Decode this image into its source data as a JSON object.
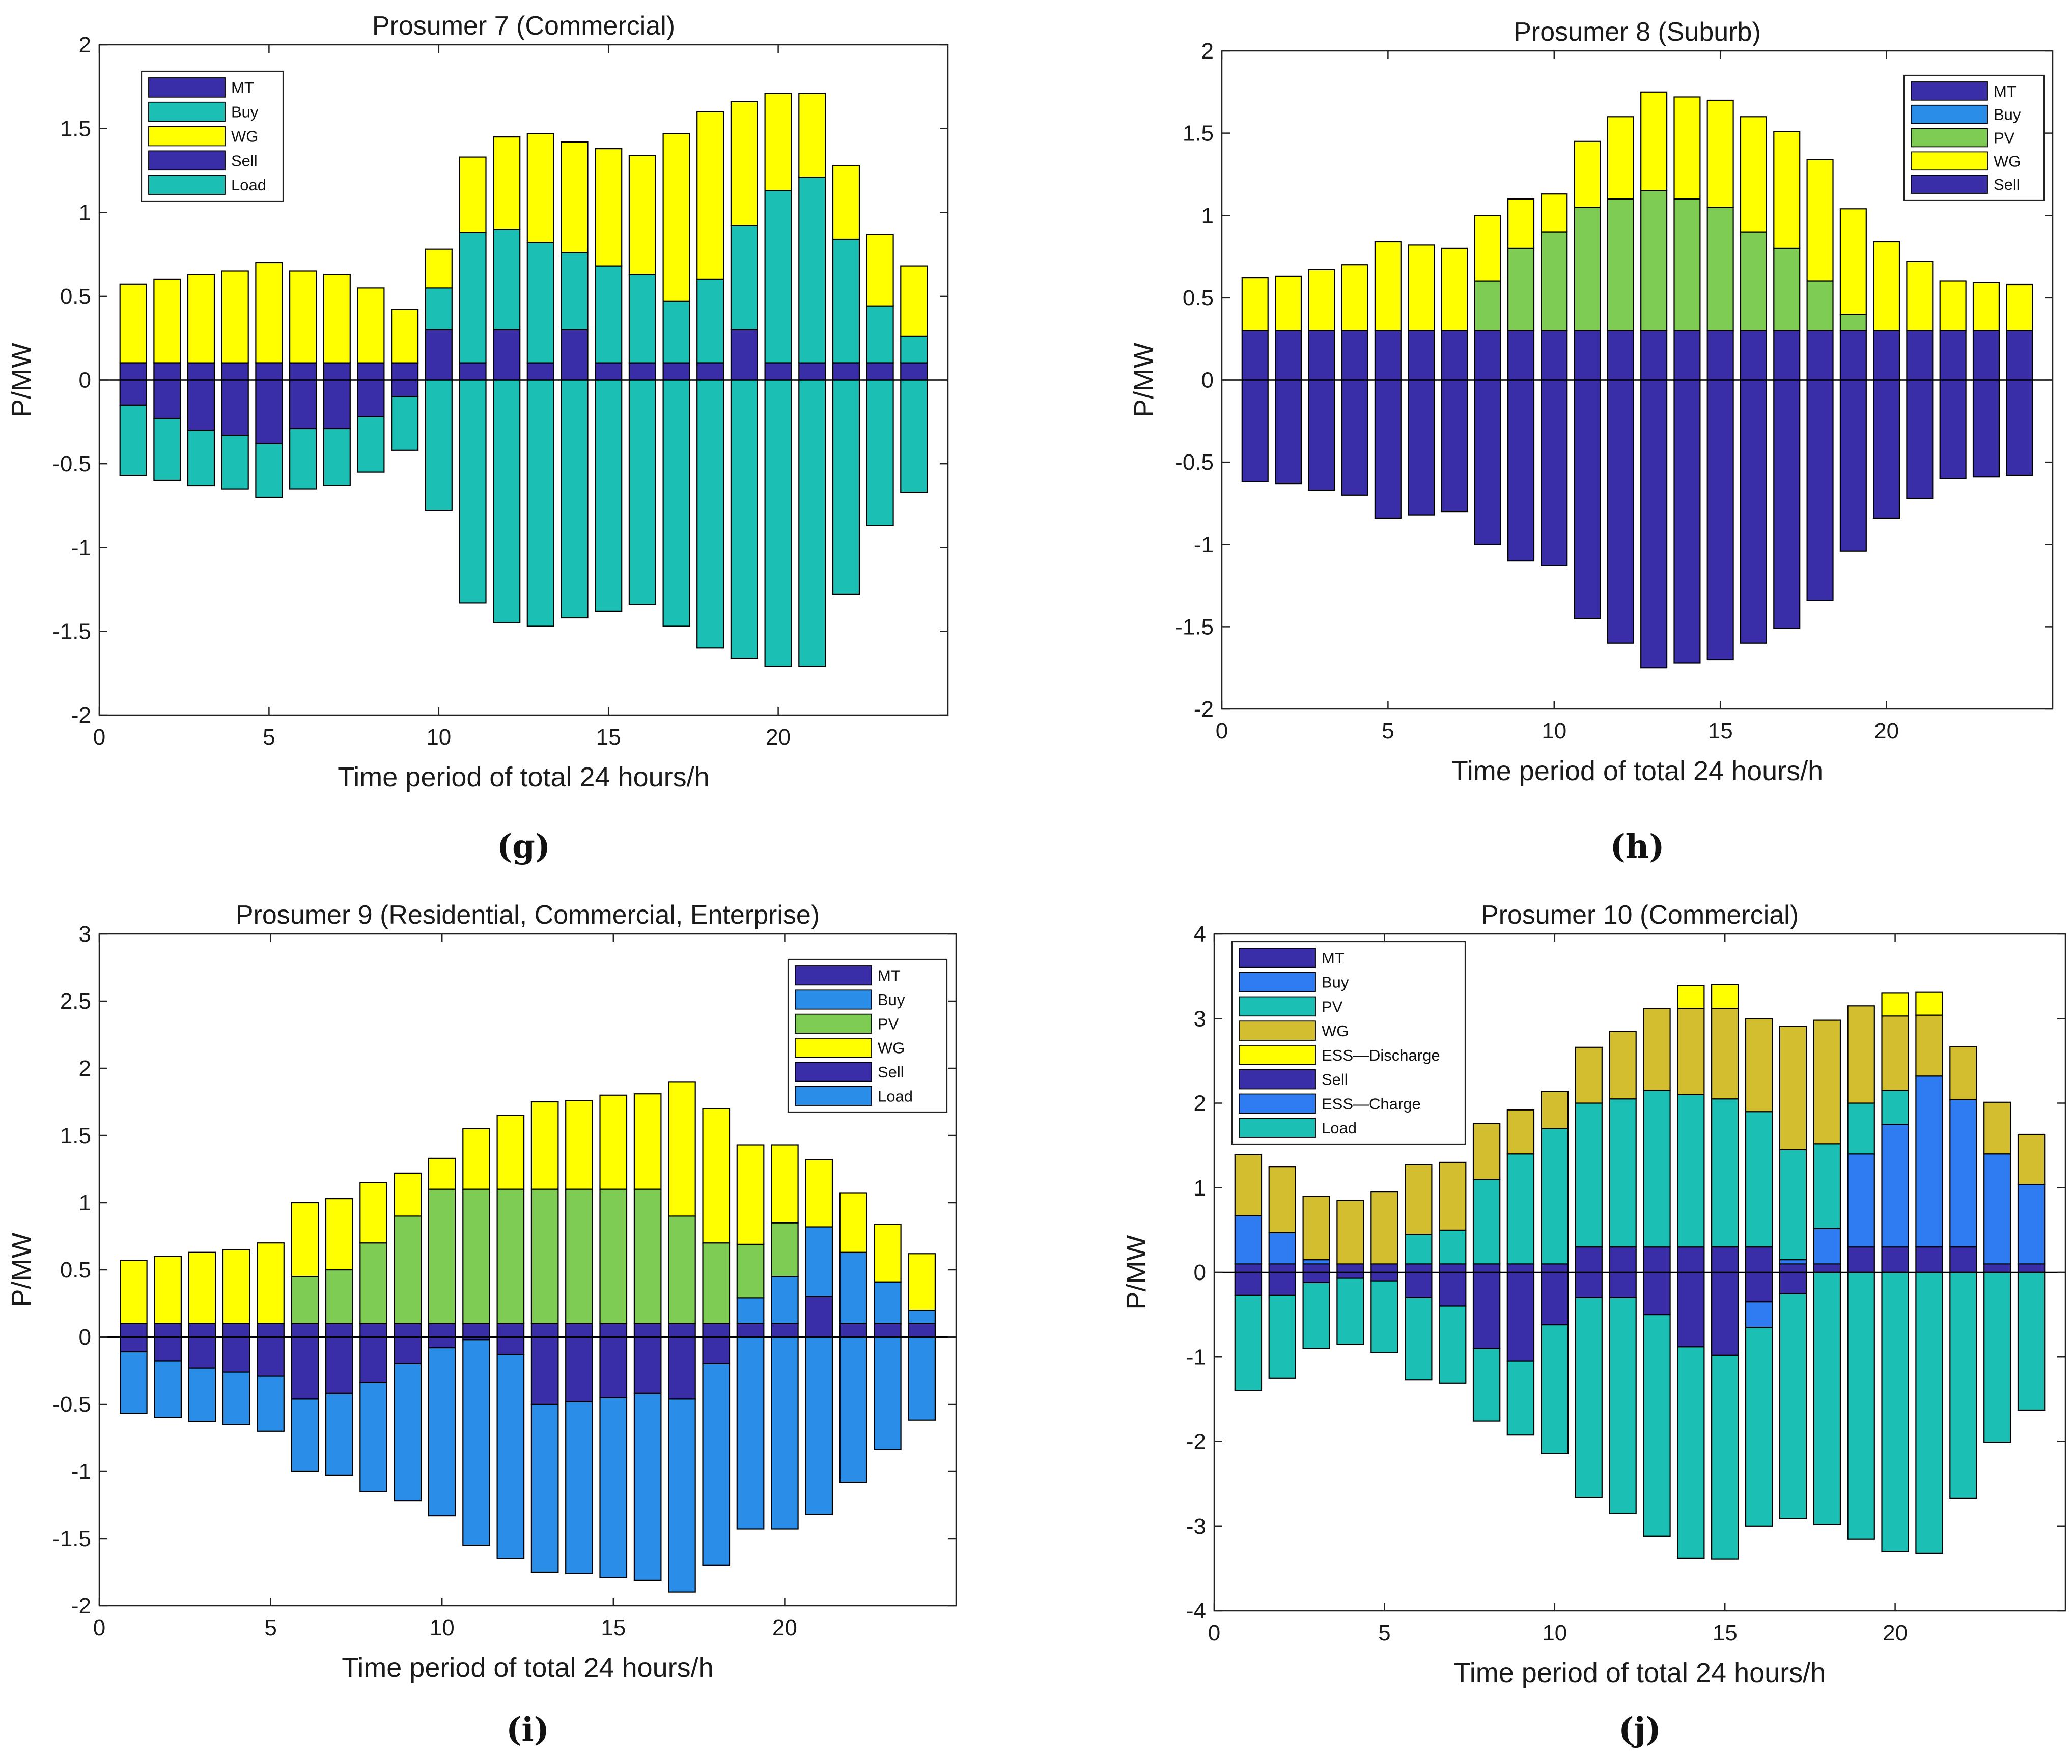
{
  "colors": {
    "MT": "#3a2ea8",
    "Buy_teal": "#1bbfb4",
    "Buy_blue": "#2a8ee8",
    "Buy_royal": "#2e7bf2",
    "PV_green": "#7fcc55",
    "PV_teal": "#1bbfb4",
    "WG_yellow": "#ffff00",
    "WG_olive": "#d2be2e",
    "ESS_discharge": "#ffff00",
    "Sell": "#3a2ea8",
    "ESS_charge": "#2e7bf2",
    "Load_teal": "#1bbfb4",
    "Load_blue": "#2a8ee8",
    "Load_bluegreen": "#1bbfb4"
  },
  "chart_data": [
    {
      "type": "bar",
      "stacked": true,
      "panel": "g",
      "title": "Prosumer 7 (Commercial)",
      "caption": "(g)",
      "xlabel": "Time period of total 24 hours/h",
      "ylabel": "P/MW",
      "xlim": [
        0,
        25
      ],
      "ylim": [
        -2,
        2
      ],
      "xticks": [
        0,
        5,
        10,
        15,
        20
      ],
      "yticks": [
        -2,
        -1.5,
        -1,
        -0.5,
        0,
        0.5,
        1,
        1.5,
        2
      ],
      "ytick_labels": [
        "-2",
        "-1.5",
        "-1",
        "-0.5",
        "0",
        "0.5",
        "1",
        "1.5",
        "2"
      ],
      "legend_position": "top-left",
      "categories": [
        1,
        2,
        3,
        4,
        5,
        6,
        7,
        8,
        9,
        10,
        11,
        12,
        13,
        14,
        15,
        16,
        17,
        18,
        19,
        20,
        21,
        22,
        23,
        24
      ],
      "series": [
        {
          "name": "MT",
          "color": "#3a2ea8",
          "values": [
            0.1,
            0.1,
            0.1,
            0.1,
            0.1,
            0.1,
            0.1,
            0.1,
            0.1,
            0.3,
            0.1,
            0.3,
            0.1,
            0.3,
            0.1,
            0.1,
            0.1,
            0.1,
            0.3,
            0.1,
            0.1,
            0.1,
            0.1,
            0.1
          ]
        },
        {
          "name": "Buy",
          "color": "#1bbfb4",
          "values": [
            0,
            0,
            0,
            0,
            0,
            0,
            0,
            0,
            0,
            0.25,
            0.78,
            0.6,
            0.72,
            0.46,
            0.58,
            0.53,
            0.37,
            0.5,
            0.62,
            1.03,
            1.11,
            0.74,
            0.34,
            0.16
          ]
        },
        {
          "name": "WG",
          "color": "#ffff00",
          "values": [
            0.47,
            0.5,
            0.53,
            0.55,
            0.6,
            0.55,
            0.53,
            0.45,
            0.32,
            0.23,
            0.45,
            0.55,
            0.65,
            0.66,
            0.7,
            0.71,
            1.0,
            1.0,
            0.74,
            0.58,
            0.5,
            0.44,
            0.43,
            0.42
          ]
        },
        {
          "name": "Sell",
          "color": "#3a2ea8",
          "values": [
            -0.15,
            -0.23,
            -0.3,
            -0.33,
            -0.38,
            -0.29,
            -0.29,
            -0.22,
            -0.1,
            0,
            0,
            0,
            0,
            0,
            0,
            0,
            0,
            0,
            0,
            0,
            0,
            0,
            0,
            0
          ]
        },
        {
          "name": "Load",
          "color": "#1bbfb4",
          "values": [
            -0.42,
            -0.37,
            -0.33,
            -0.32,
            -0.32,
            -0.36,
            -0.34,
            -0.33,
            -0.32,
            -0.78,
            -1.33,
            -1.45,
            -1.47,
            -1.42,
            -1.38,
            -1.34,
            -1.47,
            -1.6,
            -1.66,
            -1.71,
            -1.71,
            -1.28,
            -0.87,
            -0.67
          ]
        }
      ]
    },
    {
      "type": "bar",
      "stacked": true,
      "panel": "h",
      "title": "Prosumer 8 (Suburb)",
      "caption": "(h)",
      "xlabel": "Time period of total 24 hours/h",
      "ylabel": "P/MW",
      "xlim": [
        0,
        25
      ],
      "ylim": [
        -2,
        2
      ],
      "xticks": [
        0,
        5,
        10,
        15,
        20
      ],
      "yticks": [
        -2,
        -1.5,
        -1,
        -0.5,
        0,
        0.5,
        1,
        1.5,
        2
      ],
      "ytick_labels": [
        "-2",
        "-1.5",
        "-1",
        "-0.5",
        "0",
        "0.5",
        "1",
        "1.5",
        "2"
      ],
      "legend_position": "top-right",
      "categories": [
        1,
        2,
        3,
        4,
        5,
        6,
        7,
        8,
        9,
        10,
        11,
        12,
        13,
        14,
        15,
        16,
        17,
        18,
        19,
        20,
        21,
        22,
        23,
        24
      ],
      "series": [
        {
          "name": "MT",
          "color": "#3a2ea8",
          "values": [
            0.3,
            0.3,
            0.3,
            0.3,
            0.3,
            0.3,
            0.3,
            0.3,
            0.3,
            0.3,
            0.3,
            0.3,
            0.3,
            0.3,
            0.3,
            0.3,
            0.3,
            0.3,
            0.3,
            0.3,
            0.3,
            0.3,
            0.3,
            0.3
          ]
        },
        {
          "name": "Buy",
          "color": "#2a8ee8",
          "values": [
            0,
            0,
            0,
            0,
            0,
            0,
            0,
            0,
            0,
            0,
            0,
            0,
            0,
            0,
            0,
            0,
            0,
            0,
            0,
            0,
            0,
            0,
            0,
            0
          ]
        },
        {
          "name": "PV",
          "color": "#7fcc55",
          "values": [
            0,
            0,
            0,
            0,
            0,
            0,
            0,
            0.3,
            0.5,
            0.6,
            0.75,
            0.8,
            0.85,
            0.8,
            0.75,
            0.6,
            0.5,
            0.3,
            0.1,
            0,
            0,
            0,
            0,
            0
          ]
        },
        {
          "name": "WG",
          "color": "#ffff00",
          "values": [
            0.32,
            0.33,
            0.37,
            0.4,
            0.54,
            0.52,
            0.5,
            0.4,
            0.3,
            0.23,
            0.4,
            0.5,
            0.6,
            0.62,
            0.65,
            0.7,
            0.71,
            0.74,
            0.64,
            0.54,
            0.42,
            0.3,
            0.29,
            0.28
          ]
        },
        {
          "name": "Sell",
          "color": "#3a2ea8",
          "values": [
            -0.62,
            -0.63,
            -0.67,
            -0.7,
            -0.84,
            -0.82,
            -0.8,
            -1.0,
            -1.1,
            -1.13,
            -1.45,
            -1.6,
            -1.75,
            -1.72,
            -1.7,
            -1.6,
            -1.51,
            -1.34,
            -1.04,
            -0.84,
            -0.72,
            -0.6,
            -0.59,
            -0.58
          ]
        }
      ]
    },
    {
      "type": "bar",
      "stacked": true,
      "panel": "i",
      "title": "Prosumer 9 (Residential, Commercial, Enterprise)",
      "caption": "(i)",
      "xlabel": "Time period of total 24 hours/h",
      "ylabel": "P/MW",
      "xlim": [
        0,
        25
      ],
      "ylim": [
        -2,
        3
      ],
      "xticks": [
        0,
        5,
        10,
        15,
        20
      ],
      "yticks": [
        -2,
        -1.5,
        -1,
        -0.5,
        0,
        0.5,
        1,
        1.5,
        2,
        2.5,
        3
      ],
      "ytick_labels": [
        "-2",
        "-1.5",
        "-1",
        "-0.5",
        "0",
        "0.5",
        "1",
        "1.5",
        "2",
        "2.5",
        "3"
      ],
      "legend_position": "top-right",
      "categories": [
        1,
        2,
        3,
        4,
        5,
        6,
        7,
        8,
        9,
        10,
        11,
        12,
        13,
        14,
        15,
        16,
        17,
        18,
        19,
        20,
        21,
        22,
        23,
        24
      ],
      "series": [
        {
          "name": "MT",
          "color": "#3a2ea8",
          "values": [
            0.1,
            0.1,
            0.1,
            0.1,
            0.1,
            0.1,
            0.1,
            0.1,
            0.1,
            0.1,
            0.1,
            0.1,
            0.1,
            0.1,
            0.1,
            0.1,
            0.1,
            0.1,
            0.1,
            0.1,
            0.3,
            0.1,
            0.1,
            0.1
          ]
        },
        {
          "name": "Buy",
          "color": "#2a8ee8",
          "values": [
            0,
            0,
            0,
            0,
            0,
            0,
            0,
            0,
            0,
            0,
            0,
            0,
            0,
            0,
            0,
            0,
            0,
            0,
            0.19,
            0.35,
            0.52,
            0.53,
            0.31,
            0.1
          ]
        },
        {
          "name": "PV",
          "color": "#7fcc55",
          "values": [
            0,
            0,
            0,
            0,
            0,
            0.35,
            0.4,
            0.6,
            0.8,
            1.0,
            1.0,
            1.0,
            1.0,
            1.0,
            1.0,
            1.0,
            0.8,
            0.6,
            0.4,
            0.4,
            0,
            0,
            0,
            0
          ]
        },
        {
          "name": "WG",
          "color": "#ffff00",
          "values": [
            0.47,
            0.5,
            0.53,
            0.55,
            0.6,
            0.55,
            0.53,
            0.45,
            0.32,
            0.23,
            0.45,
            0.55,
            0.65,
            0.66,
            0.7,
            0.71,
            1.0,
            1.0,
            0.74,
            0.58,
            0.5,
            0.44,
            0.43,
            0.42
          ]
        },
        {
          "name": "Sell",
          "color": "#3a2ea8",
          "values": [
            -0.11,
            -0.18,
            -0.23,
            -0.26,
            -0.29,
            -0.46,
            -0.42,
            -0.34,
            -0.2,
            -0.08,
            -0.02,
            -0.13,
            -0.5,
            -0.48,
            -0.45,
            -0.42,
            -0.46,
            -0.2,
            0,
            0,
            0,
            0,
            0,
            0
          ]
        },
        {
          "name": "Load",
          "color": "#2a8ee8",
          "values": [
            -0.46,
            -0.42,
            -0.4,
            -0.39,
            -0.41,
            -0.54,
            -0.61,
            -0.81,
            -1.02,
            -1.25,
            -1.53,
            -1.52,
            -1.25,
            -1.28,
            -1.34,
            -1.39,
            -1.44,
            -1.5,
            -1.43,
            -1.43,
            -1.32,
            -1.08,
            -0.84,
            -0.62
          ]
        }
      ]
    },
    {
      "type": "bar",
      "stacked": true,
      "panel": "j",
      "title": "Prosumer 10 (Commercial)",
      "caption": "(j)",
      "xlabel": "Time period of total 24 hours/h",
      "ylabel": "P/MW",
      "xlim": [
        0,
        25
      ],
      "ylim": [
        -4,
        4
      ],
      "xticks": [
        0,
        5,
        10,
        15,
        20
      ],
      "yticks": [
        -4,
        -3,
        -2,
        -1,
        0,
        1,
        2,
        3,
        4
      ],
      "ytick_labels": [
        "-4",
        "-3",
        "-2",
        "-1",
        "0",
        "1",
        "2",
        "3",
        "4"
      ],
      "legend_position": "top-left",
      "categories": [
        1,
        2,
        3,
        4,
        5,
        6,
        7,
        8,
        9,
        10,
        11,
        12,
        13,
        14,
        15,
        16,
        17,
        18,
        19,
        20,
        21,
        22,
        23,
        24
      ],
      "series": [
        {
          "name": "MT",
          "color": "#3a2ea8",
          "values": [
            0.1,
            0.1,
            0.1,
            0.1,
            0.1,
            0.1,
            0.1,
            0.1,
            0.1,
            0.1,
            0.3,
            0.3,
            0.3,
            0.3,
            0.3,
            0.3,
            0.1,
            0.1,
            0.3,
            0.3,
            0.3,
            0.3,
            0.1,
            0.1
          ]
        },
        {
          "name": "Buy",
          "color": "#2e7bf2",
          "values": [
            0.57,
            0.37,
            0.05,
            0,
            0,
            0,
            0,
            0,
            0,
            0,
            0,
            0,
            0,
            0,
            0,
            0,
            0.05,
            0.42,
            1.1,
            1.45,
            2.02,
            1.74,
            1.3,
            0.94
          ]
        },
        {
          "name": "PV",
          "color": "#1bbfb4",
          "values": [
            0,
            0,
            0,
            0,
            0,
            0.35,
            0.4,
            1.0,
            1.3,
            1.6,
            1.7,
            1.75,
            1.85,
            1.8,
            1.75,
            1.6,
            1.3,
            1.0,
            0.6,
            0.4,
            0,
            0,
            0,
            0
          ]
        },
        {
          "name": "WG",
          "color": "#d2be2e",
          "values": [
            0.72,
            0.78,
            0.75,
            0.75,
            0.85,
            0.82,
            0.8,
            0.66,
            0.52,
            0.44,
            0.66,
            0.8,
            0.97,
            1.02,
            1.07,
            1.1,
            1.46,
            1.46,
            1.15,
            0.88,
            0.72,
            0.63,
            0.61,
            0.59
          ]
        },
        {
          "name": "ESS—Discharge",
          "color": "#ffff00",
          "values": [
            0,
            0,
            0,
            0,
            0,
            0,
            0,
            0,
            0,
            0,
            0,
            0,
            0,
            0.27,
            0.28,
            0,
            0,
            0,
            0,
            0.27,
            0.27,
            0,
            0,
            0
          ]
        },
        {
          "name": "Sell",
          "color": "#3a2ea8",
          "values": [
            -0.27,
            -0.27,
            -0.12,
            -0.07,
            -0.1,
            -0.3,
            -0.4,
            -0.9,
            -1.05,
            -0.62,
            -0.3,
            -0.3,
            -0.5,
            -0.88,
            -0.98,
            -0.35,
            -0.25,
            0,
            0,
            0,
            0,
            0,
            0,
            0
          ]
        },
        {
          "name": "ESS—Charge",
          "color": "#2e7bf2",
          "values": [
            0,
            0,
            0,
            0,
            0,
            0,
            0,
            0,
            0,
            0,
            0,
            0,
            0,
            0,
            0,
            -0.3,
            0,
            0,
            0,
            0,
            0,
            0,
            0,
            0
          ]
        },
        {
          "name": "Load",
          "color": "#1bbfb4",
          "values": [
            -1.13,
            -0.98,
            -0.78,
            -0.78,
            -0.85,
            -0.97,
            -0.91,
            -0.86,
            -0.87,
            -1.52,
            -2.36,
            -2.55,
            -2.62,
            -2.5,
            -2.41,
            -2.35,
            -2.66,
            -2.98,
            -3.15,
            -3.3,
            -3.32,
            -2.67,
            -2.01,
            -1.63
          ]
        }
      ]
    }
  ]
}
